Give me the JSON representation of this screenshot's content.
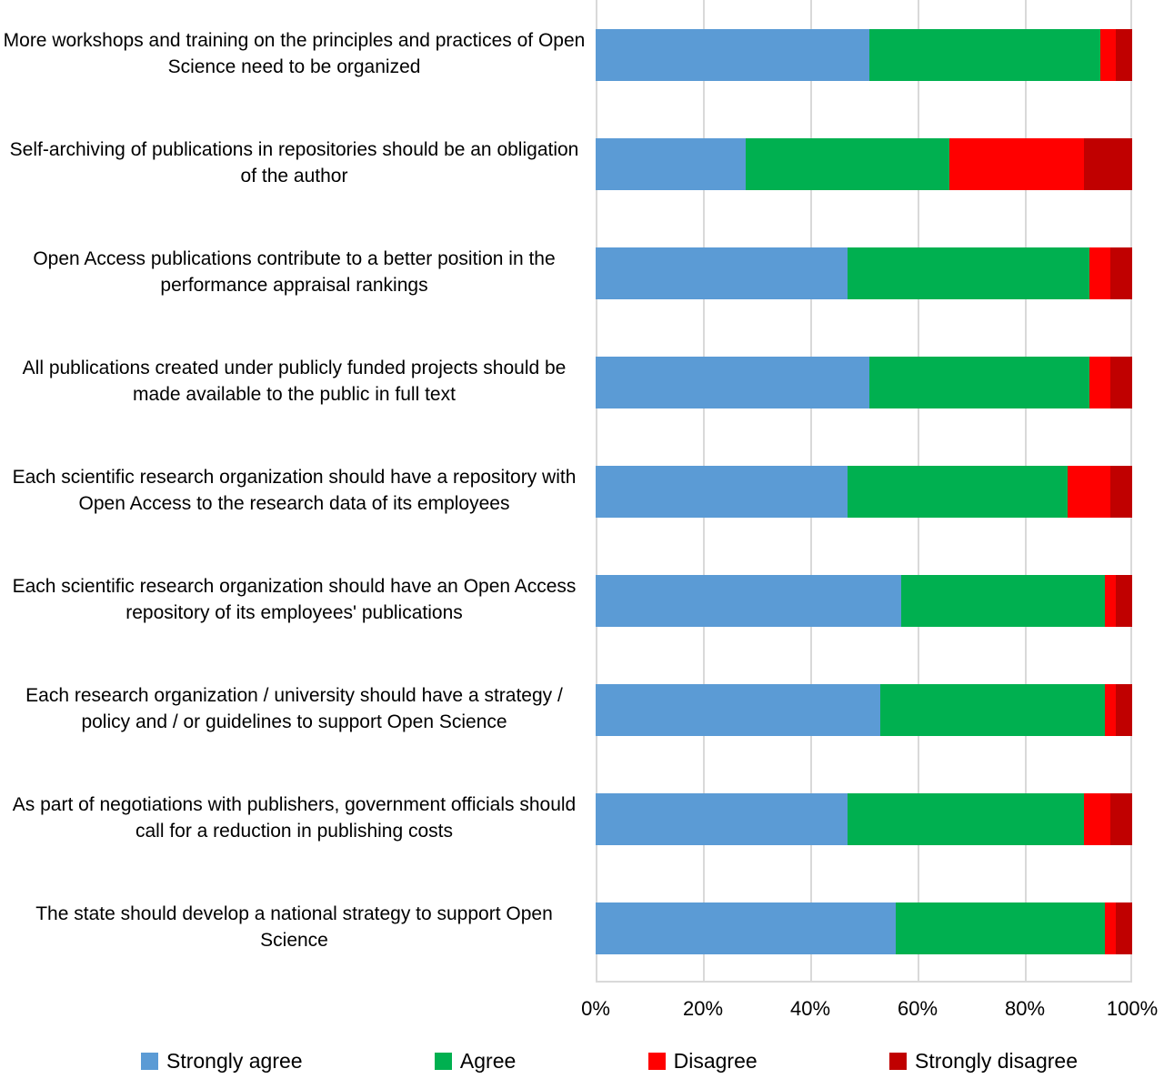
{
  "chart_data": {
    "type": "bar",
    "orientation": "horizontal",
    "stacked": true,
    "stack_total": 100,
    "categories": [
      "More workshops and training on the principles and practices of Open Science need to be organized",
      "Self-archiving of publications in repositories should be an obligation of the author",
      "Open Access publications contribute to a better position in the performance appraisal rankings",
      "All publications created under publicly funded projects should be made available to the public in full text",
      "Each scientific research organization should have a repository with Open Access to the research data of its employees",
      "Each scientific research organization should have an Open Access repository of its employees' publications",
      "Each research organization / university should have a strategy / policy and / or guidelines to support Open Science",
      "As part of negotiations with publishers, government officials should call for a reduction in publishing costs",
      "The state should develop a national strategy to support Open Science"
    ],
    "series": [
      {
        "name": "Strongly agree",
        "color": "#5B9BD5",
        "values": [
          51,
          28,
          47,
          51,
          47,
          57,
          53,
          47,
          56
        ]
      },
      {
        "name": "Agree",
        "color": "#00B050",
        "values": [
          43,
          38,
          45,
          41,
          41,
          38,
          42,
          44,
          39
        ]
      },
      {
        "name": "Disagree",
        "color": "#FF0000",
        "values": [
          3,
          25,
          4,
          4,
          8,
          2,
          2,
          5,
          2
        ]
      },
      {
        "name": "Strongly disagree",
        "color": "#C00000",
        "values": [
          3,
          9,
          4,
          4,
          4,
          3,
          3,
          4,
          3
        ]
      }
    ],
    "x_ticks": [
      "0%",
      "20%",
      "40%",
      "60%",
      "80%",
      "100%"
    ],
    "xlim": [
      0,
      100
    ],
    "grid": true,
    "gridline_interval_percent": 20,
    "legend_position": "bottom",
    "title": ""
  },
  "colors": {
    "background": "#FFFFFF",
    "gridline": "#D9D9D9",
    "text": "#000000"
  }
}
